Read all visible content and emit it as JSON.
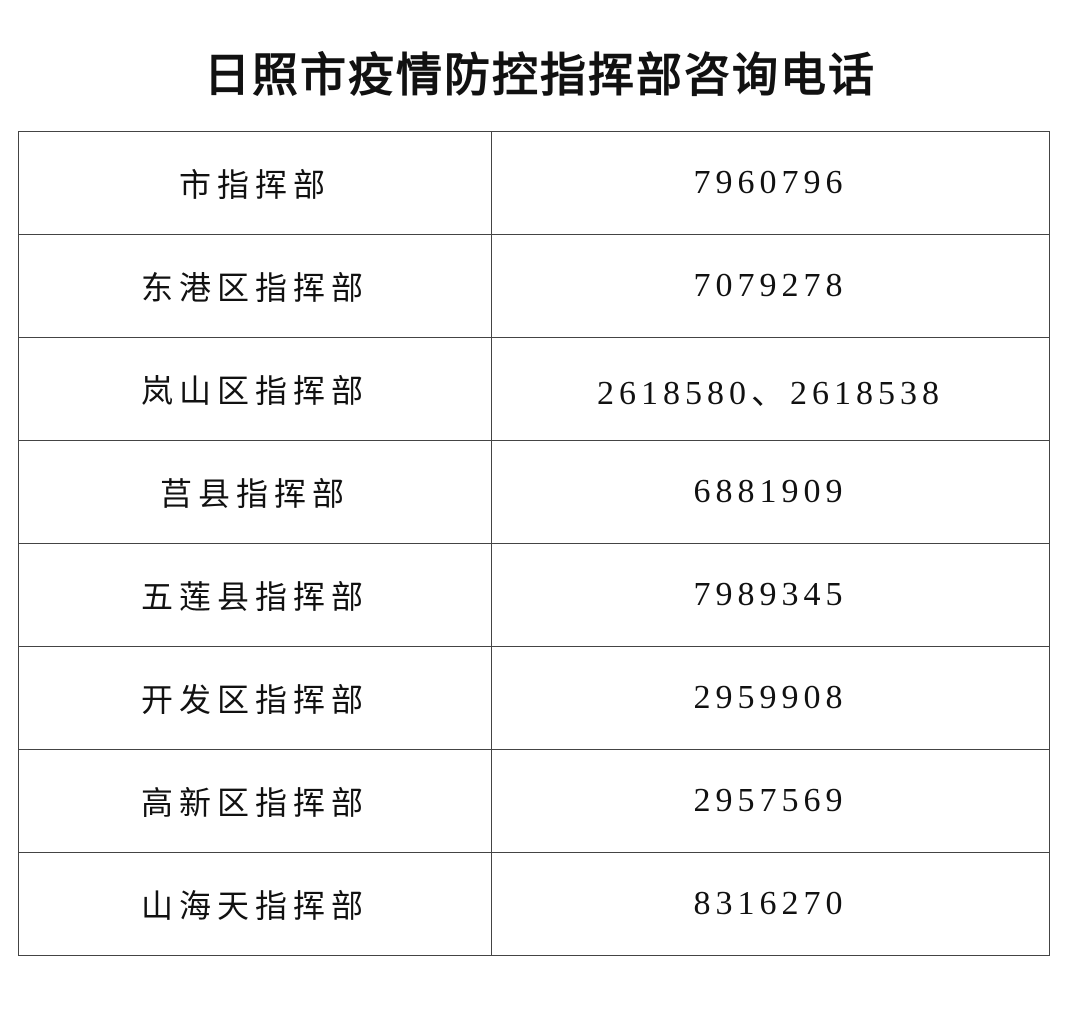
{
  "title": "日照市疫情防控指挥部咨询电话",
  "rows": [
    {
      "name": "市指挥部",
      "phone": "7960796"
    },
    {
      "name": "东港区指挥部",
      "phone": "7079278"
    },
    {
      "name": "岚山区指挥部",
      "phone": "2618580、2618538"
    },
    {
      "name": "莒县指挥部",
      "phone": "6881909"
    },
    {
      "name": "五莲县指挥部",
      "phone": "7989345"
    },
    {
      "name": "开发区指挥部",
      "phone": "2959908"
    },
    {
      "name": "高新区指挥部",
      "phone": "2957569"
    },
    {
      "name": "山海天指挥部",
      "phone": "8316270"
    }
  ]
}
